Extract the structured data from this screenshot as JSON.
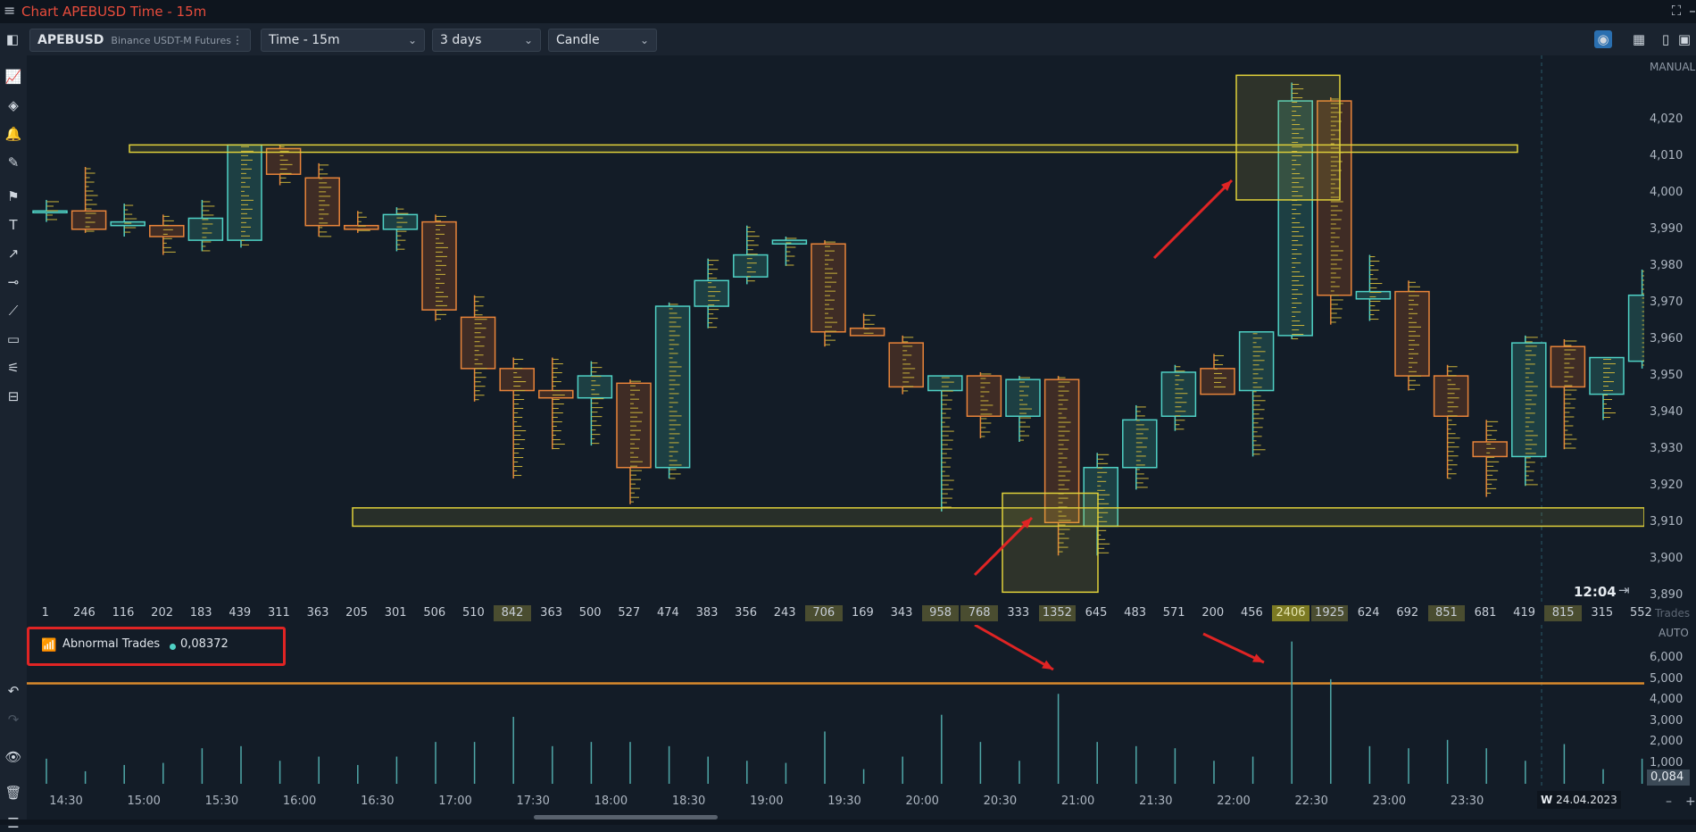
{
  "window": {
    "title": "Chart APEBUSD Time - 15m",
    "menu_icon": "hamburger-icon"
  },
  "toolbar": {
    "symbol": "APEBUSD",
    "exchange": "Binance USDT-M Futures",
    "timeframe": "Time - 15m",
    "range": "3 days",
    "chart_type": "Candle"
  },
  "price_axis": {
    "mode": "MANUAL",
    "labels": [
      "4,020",
      "4,010",
      "4,000",
      "3,990",
      "3,980",
      "3,970",
      "3,960",
      "3,950",
      "3,940",
      "3,930",
      "3,920",
      "3,910",
      "3,900",
      "3,890"
    ]
  },
  "countdown": "12:04",
  "trades_row": {
    "label": "Trades",
    "values": [
      "1",
      "246",
      "116",
      "202",
      "183",
      "439",
      "311",
      "363",
      "205",
      "301",
      "506",
      "510",
      "842",
      "363",
      "500",
      "527",
      "474",
      "383",
      "356",
      "243",
      "706",
      "169",
      "343",
      "958",
      "768",
      "333",
      "1352",
      "645",
      "483",
      "571",
      "200",
      "456",
      "2406",
      "1925",
      "624",
      "692",
      "851",
      "681",
      "419",
      "815",
      "315",
      "552"
    ]
  },
  "indicator": {
    "name": "Abnormal Trades",
    "value": "0,08372",
    "scale_mode": "AUTO",
    "axis_labels": [
      "6,000",
      "5,000",
      "4,000",
      "3,000",
      "2,000",
      "1,000"
    ],
    "current_value": "0,084"
  },
  "time_axis": {
    "labels": [
      "14:30",
      "15:00",
      "15:30",
      "16:00",
      "16:30",
      "17:00",
      "17:30",
      "18:00",
      "18:30",
      "19:00",
      "19:30",
      "20:00",
      "20:30",
      "21:00",
      "21:30",
      "22:00",
      "22:30",
      "23:00",
      "23:30"
    ],
    "date_marker": "W",
    "date": "24.04.2023"
  },
  "chart_data": {
    "type": "candlestick",
    "y_range": [
      3885,
      4035
    ],
    "bull_color": "#4fd1c5",
    "bear_color": "#e8843a",
    "candles": [
      {
        "o": 3995,
        "h": 3998,
        "l": 3992,
        "c": 3995
      },
      {
        "o": 3995,
        "h": 4007,
        "l": 3989,
        "c": 3990
      },
      {
        "o": 3991,
        "h": 3997,
        "l": 3988,
        "c": 3992
      },
      {
        "o": 3991,
        "h": 3994,
        "l": 3983,
        "c": 3988
      },
      {
        "o": 3987,
        "h": 3998,
        "l": 3984,
        "c": 3993
      },
      {
        "o": 3987,
        "h": 4013,
        "l": 3985,
        "c": 4013
      },
      {
        "o": 4012,
        "h": 4013,
        "l": 4002,
        "c": 4005
      },
      {
        "o": 4004,
        "h": 4008,
        "l": 3988,
        "c": 3991
      },
      {
        "o": 3991,
        "h": 3995,
        "l": 3989,
        "c": 3990
      },
      {
        "o": 3990,
        "h": 3996,
        "l": 3984,
        "c": 3994
      },
      {
        "o": 3992,
        "h": 3994,
        "l": 3965,
        "c": 3968
      },
      {
        "o": 3966,
        "h": 3972,
        "l": 3943,
        "c": 3952
      },
      {
        "o": 3952,
        "h": 3955,
        "l": 3922,
        "c": 3946
      },
      {
        "o": 3946,
        "h": 3955,
        "l": 3930,
        "c": 3944
      },
      {
        "o": 3944,
        "h": 3954,
        "l": 3931,
        "c": 3950
      },
      {
        "o": 3948,
        "h": 3949,
        "l": 3915,
        "c": 3925
      },
      {
        "o": 3925,
        "h": 3970,
        "l": 3922,
        "c": 3969
      },
      {
        "o": 3969,
        "h": 3982,
        "l": 3963,
        "c": 3976
      },
      {
        "o": 3977,
        "h": 3991,
        "l": 3975,
        "c": 3983
      },
      {
        "o": 3986,
        "h": 3988,
        "l": 3980,
        "c": 3987
      },
      {
        "o": 3986,
        "h": 3987,
        "l": 3958,
        "c": 3962
      },
      {
        "o": 3963,
        "h": 3967,
        "l": 3961,
        "c": 3961
      },
      {
        "o": 3959,
        "h": 3961,
        "l": 3945,
        "c": 3947
      },
      {
        "o": 3946,
        "h": 3950,
        "l": 3913,
        "c": 3950
      },
      {
        "o": 3950,
        "h": 3951,
        "l": 3933,
        "c": 3939
      },
      {
        "o": 3939,
        "h": 3950,
        "l": 3932,
        "c": 3949
      },
      {
        "o": 3949,
        "h": 3950,
        "l": 3901,
        "c": 3910
      },
      {
        "o": 3909,
        "h": 3929,
        "l": 3901,
        "c": 3925
      },
      {
        "o": 3925,
        "h": 3942,
        "l": 3919,
        "c": 3938
      },
      {
        "o": 3939,
        "h": 3953,
        "l": 3935,
        "c": 3951
      },
      {
        "o": 3952,
        "h": 3956,
        "l": 3946,
        "c": 3945
      },
      {
        "o": 3946,
        "h": 3962,
        "l": 3928,
        "c": 3962
      },
      {
        "o": 3961,
        "h": 4030,
        "l": 3960,
        "c": 4025
      },
      {
        "o": 4025,
        "h": 4026,
        "l": 3964,
        "c": 3972
      },
      {
        "o": 3971,
        "h": 3983,
        "l": 3965,
        "c": 3973
      },
      {
        "o": 3973,
        "h": 3976,
        "l": 3946,
        "c": 3950
      },
      {
        "o": 3950,
        "h": 3953,
        "l": 3922,
        "c": 3939
      },
      {
        "o": 3932,
        "h": 3938,
        "l": 3917,
        "c": 3928
      },
      {
        "o": 3928,
        "h": 3961,
        "l": 3920,
        "c": 3959
      },
      {
        "o": 3958,
        "h": 3960,
        "l": 3930,
        "c": 3947
      },
      {
        "o": 3945,
        "h": 3955,
        "l": 3938,
        "c": 3955
      },
      {
        "o": 3954,
        "h": 3979,
        "l": 3952,
        "c": 3972
      }
    ],
    "abnormal_trades": [
      1200,
      600,
      900,
      1000,
      1700,
      1800,
      1100,
      1300,
      900,
      1300,
      2000,
      2000,
      3200,
      1800,
      2000,
      2000,
      1800,
      1300,
      1100,
      1000,
      2500,
      700,
      1300,
      3300,
      2000,
      1100,
      4300,
      2000,
      1800,
      1700,
      1100,
      1300,
      6800,
      5000,
      1800,
      1700,
      2100,
      1700,
      1100,
      1900,
      700,
      1200
    ],
    "sub_y_range": [
      0,
      7000
    ],
    "threshold": 4800
  }
}
